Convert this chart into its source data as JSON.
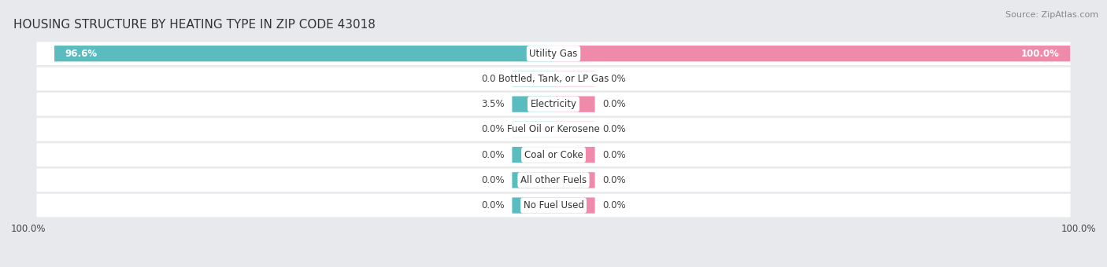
{
  "title": "HOUSING STRUCTURE BY HEATING TYPE IN ZIP CODE 43018",
  "source": "Source: ZipAtlas.com",
  "categories": [
    "Utility Gas",
    "Bottled, Tank, or LP Gas",
    "Electricity",
    "Fuel Oil or Kerosene",
    "Coal or Coke",
    "All other Fuels",
    "No Fuel Used"
  ],
  "owner_values": [
    96.6,
    0.0,
    3.5,
    0.0,
    0.0,
    0.0,
    0.0
  ],
  "renter_values": [
    100.0,
    0.0,
    0.0,
    0.0,
    0.0,
    0.0,
    0.0
  ],
  "owner_color": "#5bbcbf",
  "renter_color": "#f08aab",
  "bg_color": "#e8e9ed",
  "row_bg_color": "#ffffff",
  "x_min": -100,
  "x_max": 100,
  "axis_label_left": "100.0%",
  "axis_label_right": "100.0%",
  "title_fontsize": 11,
  "label_fontsize": 8.5,
  "category_fontsize": 8.5,
  "source_fontsize": 8,
  "min_bar_width": 8
}
